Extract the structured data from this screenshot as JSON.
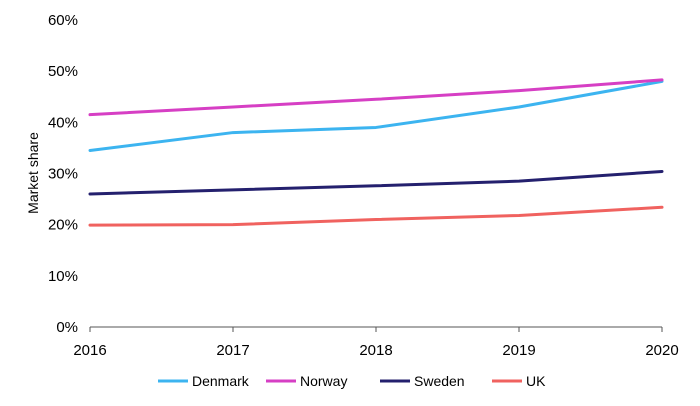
{
  "chart_data": {
    "type": "line",
    "title": "",
    "xlabel": "",
    "ylabel": "Market share",
    "x": [
      "2016",
      "2017",
      "2018",
      "2019",
      "2020"
    ],
    "ylim": [
      0,
      60
    ],
    "yticks": [
      "0%",
      "10%",
      "20%",
      "30%",
      "40%",
      "50%",
      "60%"
    ],
    "grid": false,
    "legend_position": "bottom",
    "series": [
      {
        "name": "Denmark",
        "color": "#3cb4f0",
        "values": [
          34.5,
          38.0,
          39.0,
          43.0,
          48.0
        ]
      },
      {
        "name": "Norway",
        "color": "#d63fc4",
        "values": [
          41.5,
          43.0,
          44.5,
          46.2,
          48.3
        ]
      },
      {
        "name": "Sweden",
        "color": "#24206e",
        "values": [
          26.0,
          26.8,
          27.6,
          28.5,
          30.4
        ]
      },
      {
        "name": "UK",
        "color": "#f0625f",
        "values": [
          19.9,
          20.0,
          21.0,
          21.8,
          23.4
        ]
      }
    ]
  }
}
